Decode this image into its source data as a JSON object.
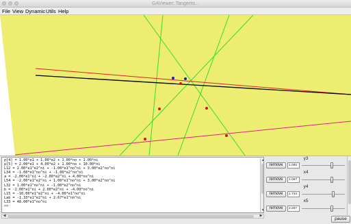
{
  "window": {
    "title": "GAViewer: Tangents...",
    "controls": [
      "close",
      "minimize",
      "zoom"
    ]
  },
  "menu": {
    "items": [
      "File",
      "View",
      "Dynamic",
      "Utils",
      "Help"
    ]
  },
  "canvas": {
    "background_color": "#ffffff",
    "plane_color": "#eded72",
    "line_colors": {
      "green": "#33dd33",
      "red": "#e02222",
      "black": "#000000",
      "magenta": "#e0207a"
    },
    "point_colors": {
      "red": "#dd1111",
      "blue": "#1a1acc"
    }
  },
  "console": {
    "lines": [
      "p[4] = 1.00*e1 + 1.00*e2 + 1.00*no + 1.00*ni",
      "p[5] = 2.00*e1 + 4.00*e2 + 1.00*no + 10.00*ni",
      "L12 = 2.00*e1^e2^ni + -1.00*e1^no^ni + 3.00*e2^no^ni",
      "L34 = -1.00*e1^no^ni + -1.00*e2^no^ni",
      "a = -2.00*e1^ni + -2.00*e2^ni + 4.00*no^ni",
      "L54 = -2.00*e1^e2^ni + 1.00*e1^no^ni + 3.00*e2^no^ni",
      "L32 = 1.00*e1^no^ni + -1.00*e2^no^ni",
      "b = -2.00*e1^ni + 2.00*e2^ni + -4.00*no^ni",
      "L15 = -16.00*e1^e2^ni + -4.00*e1^no^ni",
      "Lab = -1.33*e1^e2^ni + 2.67*e1^no^ni",
      "L33 = 48.00*e1^no^ni",
      ">>"
    ]
  },
  "controls": {
    "remove_label": "remove",
    "items": [
      {
        "name": "y3",
        "value": "1.000",
        "fraction": 0.72
      },
      {
        "name": "x4",
        "value": "1.067",
        "fraction": 0.72
      },
      {
        "name": "y4",
        "value": "1.733",
        "fraction": 0.74
      },
      {
        "name": "x5",
        "value": "2.267",
        "fraction": 0.72
      }
    ]
  },
  "pause_label": "pause"
}
